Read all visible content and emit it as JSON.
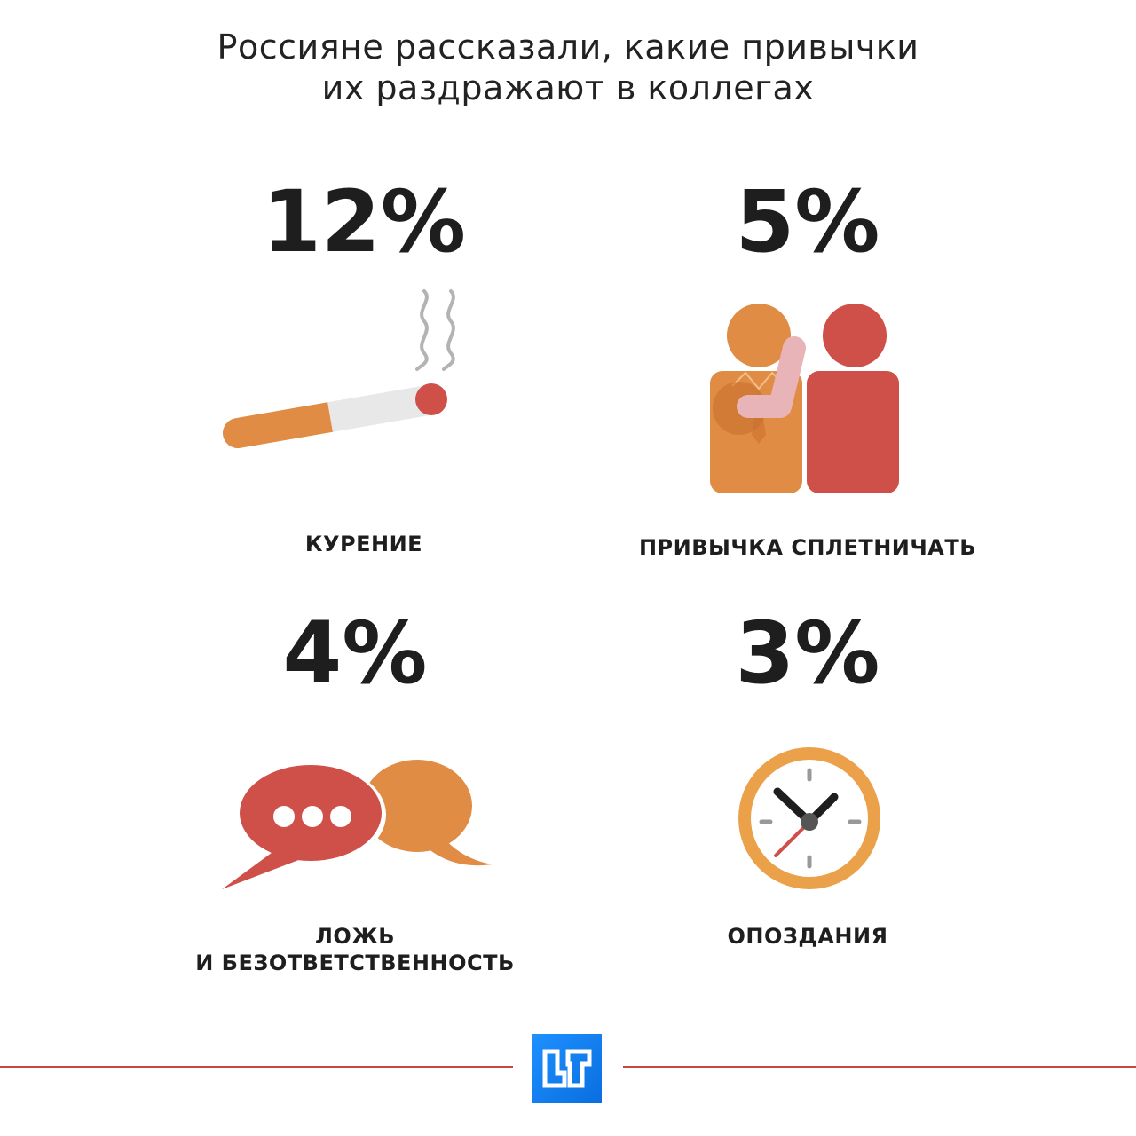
{
  "title": {
    "line1": "Россияне рассказали, какие привычки",
    "line2": "их раздражают в коллегах"
  },
  "items": [
    {
      "percent": "12%",
      "label_lines": [
        "КУРЕНИЕ"
      ],
      "value": 12,
      "icon": "cigarette-icon"
    },
    {
      "percent": "5%",
      "label_lines": [
        "ПРИВЫЧКА СПЛЕТНИЧАТЬ"
      ],
      "value": 5,
      "icon": "gossip-people-icon"
    },
    {
      "percent": "4%",
      "label_lines": [
        "ЛОЖЬ",
        "И БЕЗОТВЕТСТВЕННОСТЬ"
      ],
      "value": 4,
      "icon": "speech-bubbles-icon"
    },
    {
      "percent": "3%",
      "label_lines": [
        "ОПОЗДАНИЯ"
      ],
      "value": 3,
      "icon": "clock-icon"
    }
  ],
  "colors": {
    "orange": "#e08c44",
    "red": "#cf4f49",
    "pink": "#e8b4b8",
    "gray": "#e8e8e8",
    "clock_rim": "#eba04a",
    "rule": "#c9473f",
    "logo": "#1e90ff"
  },
  "logo": {
    "icon": "news-logo-icon"
  }
}
